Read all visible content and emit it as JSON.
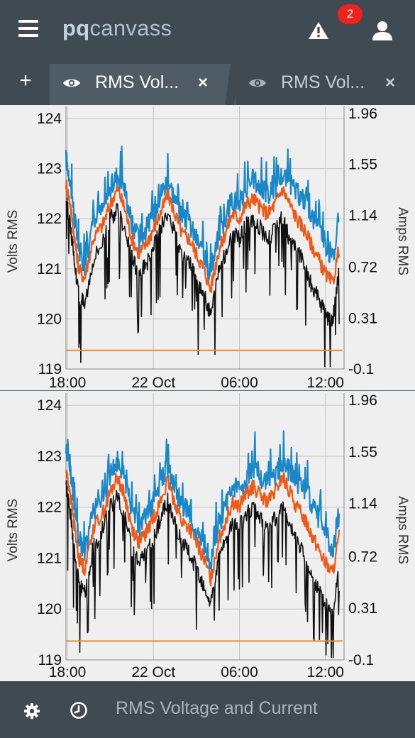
{
  "app": {
    "brand_bold": "pq",
    "brand_rest": "canvass",
    "alert_count": "2"
  },
  "icons": {
    "menu": "hamburger-menu-icon",
    "alert": "warning-triangle-icon",
    "user": "user-icon",
    "eye": "eye-icon",
    "close": "close-icon",
    "settings": "gear-icon",
    "history": "clock-icon"
  },
  "tabs": {
    "add_label": "+",
    "items": [
      {
        "label": "RMS Vol...",
        "close": "×",
        "active": true
      },
      {
        "label": "RMS Vol...",
        "close": "×",
        "active": false
      }
    ]
  },
  "footer": {
    "title": "RMS Voltage and Current"
  },
  "colors": {
    "bar_bg": "#3f4a52",
    "tab_active_bg": "#4f5c66",
    "series_blue": "#1a87c9",
    "series_orange": "#ee5a16",
    "series_black": "#111111",
    "current_line": "#f08a2a",
    "badge": "#f0221d"
  },
  "chart_data": [
    {
      "type": "line",
      "ylabel": "Volts RMS",
      "y2label": "Amps RMS",
      "x_ticks": [
        "18:00",
        "22 Oct",
        "06:00",
        "12:00"
      ],
      "y_ticks": [
        119,
        120,
        121,
        122,
        123,
        124
      ],
      "y2_ticks": [
        "-0.1",
        "0.31",
        "0.72",
        "1.14",
        "1.55",
        "1.96"
      ],
      "ylim": [
        119,
        124.1
      ],
      "y2lim": [
        -0.1,
        1.96
      ],
      "grid": true,
      "series": [
        {
          "x": [
            17.9,
            18.2,
            18.5,
            18.8,
            19.2,
            19.8,
            20.5,
            21.0,
            21.5,
            22.0,
            22.5,
            23.0,
            23.5,
            24.0,
            24.5,
            25.0,
            25.5,
            26.0,
            26.5,
            27.0,
            27.5,
            28.0,
            28.5,
            29.0,
            29.5,
            30.0,
            30.5,
            31.0,
            31.5,
            32.0,
            32.5,
            33.0,
            33.5,
            34.0,
            34.5,
            35.0,
            35.5,
            36.0,
            36.5,
            37.0
          ],
          "values": [
            123.2,
            122.8,
            122.0,
            121.4,
            121.1,
            121.9,
            122.2,
            122.6,
            122.9,
            122.6,
            121.9,
            121.6,
            121.8,
            122.1,
            122.5,
            122.8,
            122.4,
            122.0,
            121.9,
            121.6,
            121.3,
            120.9,
            121.6,
            122.0,
            122.4,
            122.3,
            122.6,
            122.8,
            122.6,
            122.5,
            122.6,
            122.9,
            122.7,
            122.5,
            122.4,
            122.1,
            121.8,
            121.5,
            121.2,
            121.9
          ]
        },
        {
          "x": [
            17.9,
            18.2,
            18.5,
            18.8,
            19.2,
            19.8,
            20.5,
            21.0,
            21.5,
            22.0,
            22.5,
            23.0,
            23.5,
            24.0,
            24.5,
            25.0,
            25.5,
            26.0,
            26.5,
            27.0,
            27.5,
            28.0,
            28.5,
            29.0,
            29.5,
            30.0,
            30.5,
            31.0,
            31.5,
            32.0,
            32.5,
            33.0,
            33.5,
            34.0,
            34.5,
            35.0,
            35.5,
            36.0,
            36.5,
            37.0
          ],
          "values": [
            122.7,
            122.3,
            121.6,
            121.0,
            120.8,
            121.6,
            121.9,
            122.3,
            122.6,
            122.2,
            121.6,
            121.3,
            121.5,
            121.8,
            122.1,
            122.5,
            122.1,
            121.7,
            121.6,
            121.3,
            121.0,
            120.6,
            121.3,
            121.7,
            122.1,
            122.0,
            122.3,
            122.4,
            122.2,
            122.1,
            122.3,
            122.6,
            122.3,
            122.0,
            121.8,
            121.5,
            121.2,
            120.9,
            120.7,
            121.5
          ]
        },
        {
          "x": [
            17.9,
            18.2,
            18.5,
            18.8,
            19.2,
            19.8,
            20.5,
            21.0,
            21.5,
            22.0,
            22.5,
            23.0,
            23.5,
            24.0,
            24.5,
            25.0,
            25.5,
            26.0,
            26.5,
            27.0,
            27.5,
            28.0,
            28.5,
            29.0,
            29.5,
            30.0,
            30.5,
            31.0,
            31.5,
            32.0,
            32.5,
            33.0,
            33.5,
            34.0,
            34.5,
            35.0,
            35.5,
            36.0,
            36.5,
            37.0
          ],
          "values": [
            122.4,
            121.9,
            121.1,
            120.5,
            120.3,
            121.2,
            121.6,
            122.0,
            122.2,
            121.8,
            121.2,
            120.9,
            121.1,
            121.4,
            121.8,
            122.1,
            121.7,
            121.3,
            121.1,
            120.8,
            120.5,
            120.1,
            120.9,
            121.3,
            121.7,
            121.6,
            121.9,
            122.0,
            121.8,
            121.6,
            121.8,
            122.0,
            121.6,
            121.4,
            121.1,
            120.7,
            120.4,
            120.1,
            119.9,
            121.1
          ]
        },
        {
          "x": [
            17.9,
            37.2
          ],
          "values": [
            0.05,
            0.05
          ]
        }
      ]
    },
    {
      "type": "line",
      "ylabel": "Volts RMS",
      "y2label": "Amps RMS",
      "x_ticks": [
        "18:00",
        "22 Oct",
        "06:00",
        "12:00"
      ],
      "y_ticks": [
        119,
        120,
        121,
        122,
        123,
        124
      ],
      "y2_ticks": [
        "-0.1",
        "0.31",
        "0.72",
        "1.14",
        "1.55",
        "1.96"
      ],
      "ylim": [
        119,
        124.1
      ],
      "y2lim": [
        -0.1,
        1.96
      ],
      "grid": true,
      "series": [
        {
          "x": [
            17.9,
            18.2,
            18.5,
            18.8,
            19.2,
            19.8,
            20.5,
            21.0,
            21.5,
            22.0,
            22.5,
            23.0,
            23.5,
            24.0,
            24.5,
            25.0,
            25.5,
            26.0,
            26.5,
            27.0,
            27.5,
            28.0,
            28.5,
            29.0,
            29.5,
            30.0,
            30.5,
            31.0,
            31.5,
            32.0,
            32.5,
            33.0,
            33.5,
            34.0,
            34.5,
            35.0,
            35.5,
            36.0,
            36.5,
            37.0
          ],
          "values": [
            123.2,
            122.8,
            122.0,
            121.4,
            121.1,
            121.9,
            122.2,
            122.6,
            122.9,
            122.6,
            121.9,
            121.6,
            121.8,
            122.1,
            122.5,
            122.8,
            122.4,
            122.0,
            121.9,
            121.6,
            121.3,
            120.9,
            121.6,
            122.0,
            122.4,
            122.3,
            122.6,
            122.8,
            122.6,
            122.5,
            122.6,
            122.9,
            122.7,
            122.5,
            122.4,
            122.1,
            121.8,
            121.5,
            121.2,
            121.9
          ]
        },
        {
          "x": [
            17.9,
            18.2,
            18.5,
            18.8,
            19.2,
            19.8,
            20.5,
            21.0,
            21.5,
            22.0,
            22.5,
            23.0,
            23.5,
            24.0,
            24.5,
            25.0,
            25.5,
            26.0,
            26.5,
            27.0,
            27.5,
            28.0,
            28.5,
            29.0,
            29.5,
            30.0,
            30.5,
            31.0,
            31.5,
            32.0,
            32.5,
            33.0,
            33.5,
            34.0,
            34.5,
            35.0,
            35.5,
            36.0,
            36.5,
            37.0
          ],
          "values": [
            122.7,
            122.3,
            121.6,
            121.0,
            120.8,
            121.6,
            121.9,
            122.3,
            122.6,
            122.2,
            121.6,
            121.3,
            121.5,
            121.8,
            122.1,
            122.5,
            122.1,
            121.7,
            121.6,
            121.3,
            121.0,
            120.6,
            121.3,
            121.7,
            122.1,
            122.0,
            122.3,
            122.4,
            122.2,
            122.1,
            122.3,
            122.6,
            122.3,
            122.0,
            121.8,
            121.5,
            121.2,
            120.9,
            120.7,
            121.5
          ]
        },
        {
          "x": [
            17.9,
            18.2,
            18.5,
            18.8,
            19.2,
            19.8,
            20.5,
            21.0,
            21.5,
            22.0,
            22.5,
            23.0,
            23.5,
            24.0,
            24.5,
            25.0,
            25.5,
            26.0,
            26.5,
            27.0,
            27.5,
            28.0,
            28.5,
            29.0,
            29.5,
            30.0,
            30.5,
            31.0,
            31.5,
            32.0,
            32.5,
            33.0,
            33.5,
            34.0,
            34.5,
            35.0,
            35.5,
            36.0,
            36.5,
            37.0
          ],
          "values": [
            122.4,
            121.9,
            121.1,
            120.5,
            120.3,
            121.2,
            121.6,
            122.0,
            122.2,
            121.8,
            121.2,
            120.9,
            121.1,
            121.4,
            121.8,
            122.1,
            121.7,
            121.3,
            121.1,
            120.8,
            120.5,
            120.1,
            120.9,
            121.3,
            121.7,
            121.6,
            121.9,
            122.0,
            121.8,
            121.6,
            121.8,
            122.0,
            121.6,
            121.4,
            121.1,
            120.7,
            120.4,
            120.1,
            119.9,
            121.1
          ]
        },
        {
          "x": [
            17.9,
            37.2
          ],
          "values": [
            0.05,
            0.05
          ]
        }
      ]
    }
  ]
}
